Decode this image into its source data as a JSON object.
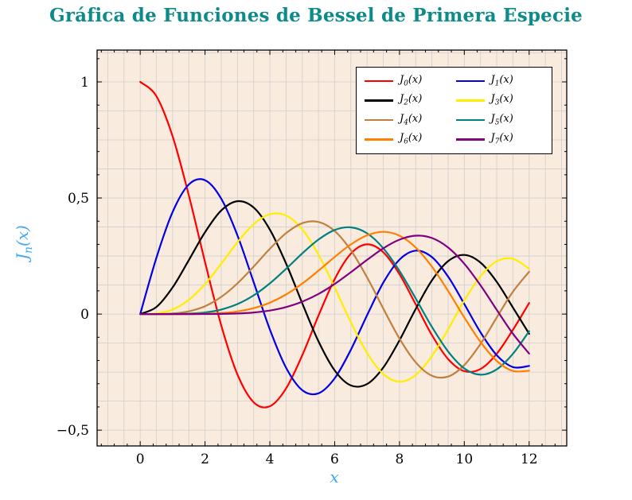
{
  "chart_data": {
    "type": "line",
    "title": "Gráfica de Funciones de Bessel de Primera Especie",
    "title_color": "#0d8b8b",
    "xlabel": "x",
    "ylabel": {
      "base": "J",
      "sub": "n",
      "rest": "(x)"
    },
    "axis_label_color": "#3fa9f5",
    "plot_bg": "#f9ebdd",
    "grid": true,
    "legend_position": "top-right",
    "xlim": [
      -1.33,
      13.16
    ],
    "ylim": [
      -0.568,
      1.137
    ],
    "x_step": 0.5,
    "x_ticks": {
      "values": [
        0,
        2,
        4,
        6,
        8,
        10,
        12
      ],
      "labels": [
        "0",
        "2",
        "4",
        "6",
        "8",
        "10",
        "12"
      ]
    },
    "y_ticks": {
      "values": [
        1,
        0.5,
        0,
        -0.5
      ],
      "labels": [
        "1",
        "0,5",
        "0",
        "−0,5"
      ]
    },
    "series": [
      {
        "name": "J0(x)",
        "label": {
          "base": "J",
          "sub": "0",
          "rest": "(x)"
        },
        "color": "#ff0000",
        "values": [
          1,
          0.9385,
          0.7652,
          0.5118,
          0.2239,
          -0.0484,
          -0.2601,
          -0.3801,
          -0.3971,
          -0.3205,
          -0.1776,
          -0.0068,
          0.1506,
          0.2601,
          0.3001,
          0.2663,
          0.1717,
          0.0419,
          -0.0903,
          -0.1939,
          -0.2459,
          -0.2366,
          -0.1712,
          -0.0677,
          0.0477
        ]
      },
      {
        "name": "J1(x)",
        "label": {
          "base": "J",
          "sub": "1",
          "rest": "(x)"
        },
        "color": "#0000e6",
        "values": [
          0,
          0.2423,
          0.4401,
          0.5579,
          0.5767,
          0.4971,
          0.3391,
          0.1374,
          -0.066,
          -0.2311,
          -0.3276,
          -0.3414,
          -0.2767,
          -0.1538,
          -0.0047,
          0.1352,
          0.2346,
          0.2731,
          0.2453,
          0.1613,
          0.0435,
          -0.0789,
          -0.1768,
          -0.2284,
          -0.2234
        ]
      },
      {
        "name": "J2(x)",
        "label": {
          "base": "J",
          "sub": "2",
          "rest": "(x)"
        },
        "color": "#000000",
        "values": [
          0,
          0.0306,
          0.1149,
          0.2321,
          0.3528,
          0.4461,
          0.4861,
          0.4586,
          0.3641,
          0.2178,
          0.0466,
          -0.1173,
          -0.2429,
          -0.3074,
          -0.3014,
          -0.2303,
          -0.113,
          0.0223,
          0.1448,
          0.2279,
          0.2546,
          0.2216,
          0.139,
          0.0279,
          -0.0849
        ]
      },
      {
        "name": "J3(x)",
        "label": {
          "base": "J",
          "sub": "3",
          "rest": "(x)"
        },
        "color": "#ffee00",
        "values": [
          0,
          0.0026,
          0.0196,
          0.061,
          0.1289,
          0.2166,
          0.3091,
          0.3868,
          0.4302,
          0.4247,
          0.3648,
          0.2561,
          0.1148,
          -0.0353,
          -0.1676,
          -0.258,
          -0.2911,
          -0.2626,
          -0.1809,
          -0.0653,
          0.0584,
          0.1633,
          0.2273,
          0.2381,
          0.1951
        ]
      },
      {
        "name": "J4(x)",
        "label": {
          "base": "J",
          "sub": "4",
          "rest": "(x)"
        },
        "color": "#bf8040",
        "values": [
          0,
          0.0002,
          0.0025,
          0.0118,
          0.034,
          0.0738,
          0.132,
          0.2044,
          0.2811,
          0.3484,
          0.3912,
          0.3967,
          0.3576,
          0.2748,
          0.1578,
          0.0238,
          -0.1054,
          -0.2077,
          -0.2655,
          -0.2691,
          -0.2196,
          -0.1283,
          -0.015,
          0.0963,
          0.1825
        ]
      },
      {
        "name": "J5(x)",
        "label": {
          "base": "J",
          "sub": "5",
          "rest": "(x)"
        },
        "color": "#008080",
        "values": [
          0,
          0,
          0.0002,
          0.0018,
          0.007,
          0.0195,
          0.043,
          0.0804,
          0.1321,
          0.1947,
          0.2611,
          0.3209,
          0.3621,
          0.3736,
          0.3479,
          0.2834,
          0.1858,
          0.0671,
          -0.055,
          -0.1613,
          -0.2341,
          -0.2611,
          -0.2383,
          -0.1711,
          -0.0735
        ]
      },
      {
        "name": "J6(x)",
        "label": {
          "base": "J",
          "sub": "6",
          "rest": "(x)"
        },
        "color": "#ff8000",
        "values": [
          0,
          0,
          0,
          0.0002,
          0.0012,
          0.0042,
          0.0114,
          0.0254,
          0.0491,
          0.0843,
          0.131,
          0.1868,
          0.2458,
          0.3,
          0.3392,
          0.3541,
          0.3376,
          0.2867,
          0.2043,
          0.0993,
          -0.0145,
          -0.1203,
          -0.2016,
          -0.2451,
          -0.2437
        ]
      },
      {
        "name": "J7(x)",
        "label": {
          "base": "J",
          "sub": "7",
          "rest": "(x)"
        },
        "color": "#800080",
        "values": [
          0,
          0,
          0,
          0,
          0.0002,
          0.0007,
          0.0025,
          0.0067,
          0.0152,
          0.0301,
          0.0534,
          0.0867,
          0.1296,
          0.1802,
          0.2336,
          0.2832,
          0.3206,
          0.3377,
          0.3275,
          0.2867,
          0.2167,
          0.1236,
          0.0184,
          -0.0847,
          -0.1703
        ]
      }
    ]
  }
}
